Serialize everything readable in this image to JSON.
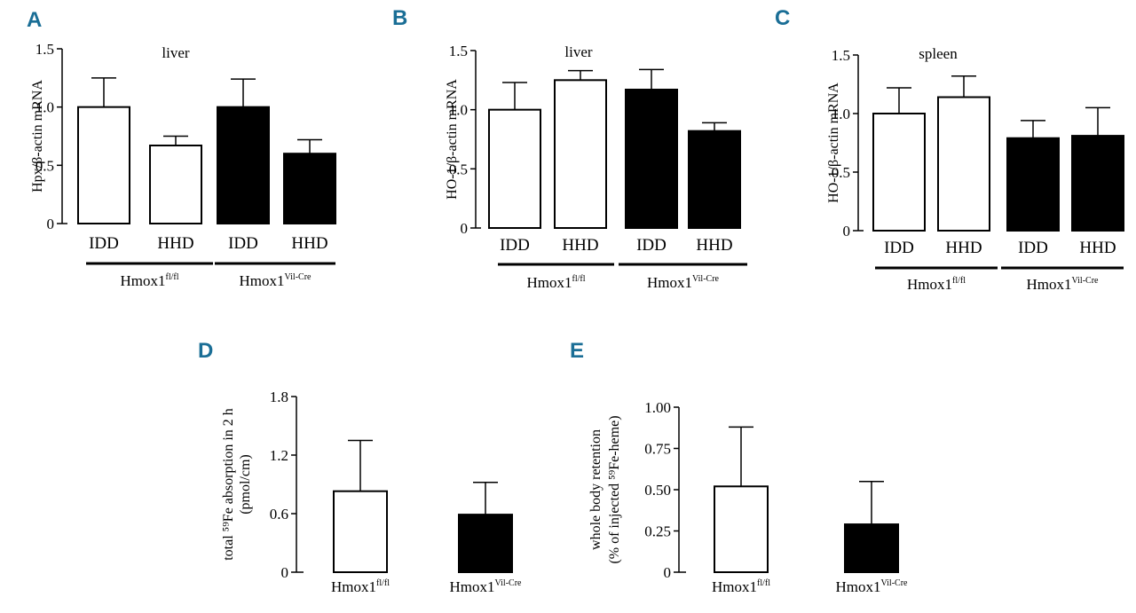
{
  "chart_data": [
    {
      "panel": "A",
      "type": "bar",
      "title": "liver",
      "ylabel": "Hpx/β-actin mRNA",
      "ylim": [
        0,
        1.5
      ],
      "yticks": [
        "0",
        "0.5",
        "1.0",
        "1.5"
      ],
      "categories": [
        "IDD",
        "HHD",
        "IDD",
        "HHD"
      ],
      "values": [
        1.0,
        0.67,
        1.0,
        0.6
      ],
      "errors": [
        0.25,
        0.08,
        0.24,
        0.12
      ],
      "fills": [
        "#ffffff",
        "#ffffff",
        "#000000",
        "#000000"
      ],
      "groups": [
        {
          "main": "Hmox1",
          "sup": "fl/fl"
        },
        {
          "main": "Hmox1",
          "sup": "Vil-Cre"
        }
      ]
    },
    {
      "panel": "B",
      "type": "bar",
      "title": "liver",
      "ylabel": "HO-1/β-actin mRNA",
      "ylim": [
        0,
        1.5
      ],
      "yticks": [
        "0",
        "0.5",
        "1.0",
        "1.5"
      ],
      "categories": [
        "IDD",
        "HHD",
        "IDD",
        "HHD"
      ],
      "values": [
        1.0,
        1.25,
        1.17,
        0.82
      ],
      "errors": [
        0.23,
        0.08,
        0.17,
        0.07
      ],
      "fills": [
        "#ffffff",
        "#ffffff",
        "#000000",
        "#000000"
      ],
      "groups": [
        {
          "main": "Hmox1",
          "sup": "fl/fl"
        },
        {
          "main": "Hmox1",
          "sup": "Vil-Cre"
        }
      ]
    },
    {
      "panel": "C",
      "type": "bar",
      "title": "spleen",
      "ylabel": "HO-1/β-actin mRNA",
      "ylim": [
        0,
        1.5
      ],
      "yticks": [
        "0",
        "0.5",
        "1.0",
        "1.5"
      ],
      "categories": [
        "IDD",
        "HHD",
        "IDD",
        "HHD"
      ],
      "values": [
        1.0,
        1.14,
        0.79,
        0.81
      ],
      "errors": [
        0.22,
        0.18,
        0.15,
        0.24
      ],
      "fills": [
        "#ffffff",
        "#ffffff",
        "#000000",
        "#000000"
      ],
      "groups": [
        {
          "main": "Hmox1",
          "sup": "fl/fl"
        },
        {
          "main": "Hmox1",
          "sup": "Vil-Cre"
        }
      ]
    },
    {
      "panel": "D",
      "type": "bar",
      "title": "",
      "ylabel_lines": [
        "total ⁵⁹Fe absorption in 2 h",
        "(pmol/cm)"
      ],
      "ylim": [
        0,
        1.8
      ],
      "yticks": [
        "0",
        "0.6",
        "1.2",
        "1.8"
      ],
      "categories": [
        {
          "main": "Hmox1",
          "sup": "fl/fl"
        },
        {
          "main": "Hmox1",
          "sup": "Vil-Cre"
        }
      ],
      "values": [
        0.83,
        0.59
      ],
      "errors": [
        0.52,
        0.33
      ],
      "fills": [
        "#ffffff",
        "#000000"
      ]
    },
    {
      "panel": "E",
      "type": "bar",
      "title": "",
      "ylabel_lines": [
        "whole body retention",
        "(% of injected ⁵⁹Fe-heme)"
      ],
      "ylim": [
        0,
        1.0
      ],
      "yticks": [
        "0",
        "0.25",
        "0.50",
        "0.75",
        "1.00"
      ],
      "categories": [
        {
          "main": "Hmox1",
          "sup": "fl/fl"
        },
        {
          "main": "Hmox1",
          "sup": "Vil-Cre"
        }
      ],
      "values": [
        0.52,
        0.29
      ],
      "errors": [
        0.36,
        0.26
      ],
      "fills": [
        "#ffffff",
        "#000000"
      ]
    }
  ]
}
